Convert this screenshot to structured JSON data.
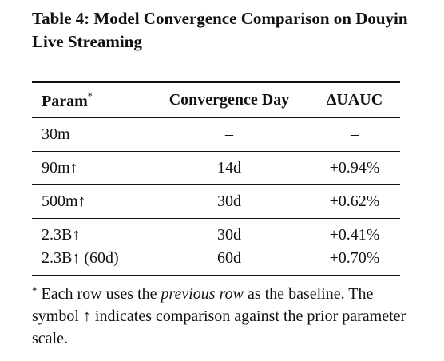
{
  "title": "Table 4: Model Convergence Comparison on Douyin Live Streaming",
  "table": {
    "header": [
      "Param",
      "Convergence Day",
      "ΔUAUC"
    ],
    "header_note": "*",
    "row_groups": [
      [
        [
          "30m",
          "–",
          "–"
        ]
      ],
      [
        [
          "90m↑",
          "14d",
          "+0.94%"
        ]
      ],
      [
        [
          "500m↑",
          "30d",
          "+0.62%"
        ]
      ],
      [
        [
          "2.3B↑",
          "30d",
          "+0.41%"
        ],
        [
          "2.3B↑ (60d)",
          "60d",
          "+0.70%"
        ]
      ]
    ]
  },
  "footnote": {
    "marker": "*",
    "parts": [
      " Each row uses the ",
      "previous row",
      " as the baseline. The symbol ↑ indicates comparison against the prior parameter scale."
    ]
  }
}
